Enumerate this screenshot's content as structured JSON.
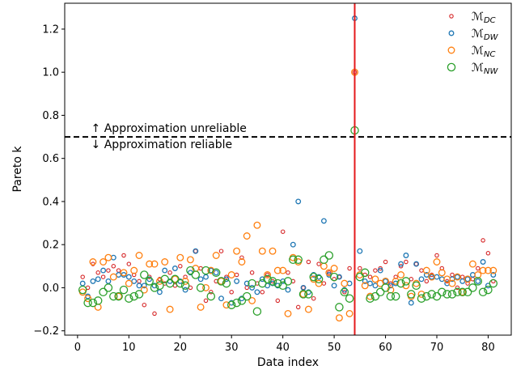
{
  "chart_data": {
    "type": "scatter",
    "xlabel": "Data index",
    "ylabel": "Pareto k",
    "xlim": [
      -2.5,
      84.5
    ],
    "ylim": [
      -0.22,
      1.32
    ],
    "x_ticks": [
      0,
      10,
      20,
      30,
      40,
      50,
      60,
      70,
      80
    ],
    "y_ticks": [
      -0.2,
      0.0,
      0.2,
      0.4,
      0.6,
      0.8,
      1.0,
      1.2
    ],
    "x_tick_labels": [
      "0",
      "10",
      "20",
      "30",
      "40",
      "50",
      "60",
      "70",
      "80"
    ],
    "y_tick_labels": [
      "−0.2",
      "0.0",
      "0.2",
      "0.4",
      "0.6",
      "0.8",
      "1.0",
      "1.2"
    ],
    "grid": false,
    "legend_position": "top-right",
    "threshold_line": {
      "y": 0.7,
      "style": "dashed",
      "color": "#000000"
    },
    "vertical_line": {
      "x": 54,
      "color": "#e41a1c"
    },
    "annotations": {
      "above": "↑ Approximation unreliable",
      "below": "↓ Approximation reliable",
      "x": 2
    },
    "series": [
      {
        "name": "ℳ",
        "name_sub": "DC",
        "color": "#d62728",
        "marker_size": 2.2,
        "x": [
          1,
          2,
          3,
          4,
          5,
          6,
          7,
          8,
          9,
          10,
          11,
          12,
          13,
          14,
          15,
          16,
          17,
          18,
          19,
          20,
          21,
          22,
          23,
          24,
          25,
          26,
          27,
          28,
          29,
          30,
          31,
          32,
          33,
          34,
          35,
          36,
          37,
          38,
          39,
          40,
          41,
          42,
          43,
          44,
          45,
          46,
          47,
          48,
          49,
          50,
          51,
          52,
          53,
          54,
          55,
          56,
          57,
          58,
          59,
          60,
          61,
          62,
          63,
          64,
          65,
          66,
          67,
          68,
          69,
          70,
          71,
          72,
          73,
          74,
          75,
          76,
          77,
          78,
          79,
          80,
          81
        ],
        "y": [
          0.05,
          0.0,
          0.11,
          0.07,
          0.05,
          0.08,
          0.1,
          0.08,
          0.15,
          0.11,
          0.06,
          0.03,
          -0.08,
          0.05,
          -0.12,
          0.04,
          0.02,
          0.07,
          0.01,
          0.1,
          0.05,
          0.0,
          0.17,
          0.09,
          -0.06,
          -0.02,
          0.03,
          0.17,
          0.05,
          -0.02,
          0.06,
          0.14,
          0.0,
          0.07,
          0.02,
          -0.02,
          0.06,
          0.03,
          -0.06,
          0.26,
          0.07,
          0.03,
          -0.09,
          0.0,
          0.12,
          -0.05,
          0.11,
          0.02,
          0.07,
          0.04,
          0.05,
          -0.02,
          0.09,
          1.0,
          0.09,
          0.06,
          0.05,
          0.08,
          0.09,
          0.12,
          0.02,
          0.05,
          0.1,
          0.12,
          0.04,
          0.11,
          0.08,
          0.03,
          0.06,
          0.15,
          0.09,
          0.03,
          0.06,
          0.0,
          0.05,
          0.02,
          0.04,
          0.09,
          0.22,
          0.16,
          0.03
        ]
      },
      {
        "name": "ℳ",
        "name_sub": "DW",
        "color": "#1f77b4",
        "marker_size": 2.8,
        "x": [
          1,
          2,
          3,
          4,
          5,
          6,
          7,
          8,
          9,
          10,
          11,
          12,
          13,
          14,
          15,
          16,
          17,
          18,
          19,
          20,
          21,
          22,
          23,
          24,
          25,
          26,
          27,
          28,
          29,
          30,
          31,
          32,
          33,
          34,
          35,
          36,
          37,
          38,
          39,
          40,
          41,
          42,
          43,
          44,
          45,
          46,
          47,
          48,
          49,
          50,
          51,
          52,
          53,
          54,
          55,
          56,
          57,
          58,
          59,
          60,
          61,
          62,
          63,
          64,
          65,
          66,
          67,
          68,
          69,
          70,
          71,
          72,
          73,
          74,
          75,
          76,
          77,
          78,
          79,
          80,
          81
        ],
        "y": [
          0.02,
          -0.04,
          0.03,
          0.04,
          0.08,
          0.03,
          0.14,
          0.06,
          0.06,
          0.05,
          0.03,
          0.01,
          0.01,
          0.04,
          0.01,
          -0.02,
          0.08,
          0.03,
          0.09,
          0.03,
          -0.01,
          0.07,
          0.17,
          0.04,
          0.05,
          0.08,
          0.07,
          -0.05,
          0.04,
          -0.07,
          0.03,
          -0.05,
          0.02,
          0.0,
          -0.02,
          0.04,
          0.01,
          0.02,
          0.01,
          0.03,
          -0.01,
          0.2,
          0.4,
          0.0,
          -0.02,
          0.06,
          0.05,
          0.31,
          0.06,
          0.01,
          0.05,
          -0.01,
          0.02,
          1.25,
          0.17,
          0.03,
          0.02,
          0.01,
          0.08,
          0.03,
          0.01,
          0.02,
          0.11,
          0.15,
          -0.07,
          0.11,
          0.04,
          0.06,
          0.05,
          0.05,
          0.04,
          0.02,
          0.04,
          0.05,
          0.03,
          0.04,
          0.06,
          0.03,
          0.12,
          0.01,
          0.06
        ]
      },
      {
        "name": "ℳ",
        "name_sub": "NC",
        "color": "#ff7f0e",
        "marker_size": 3.8,
        "x": [
          1,
          2,
          3,
          4,
          5,
          6,
          7,
          8,
          9,
          10,
          11,
          12,
          13,
          14,
          15,
          16,
          17,
          18,
          19,
          20,
          21,
          22,
          23,
          24,
          25,
          26,
          27,
          28,
          29,
          30,
          31,
          32,
          33,
          34,
          35,
          36,
          37,
          38,
          39,
          40,
          41,
          42,
          43,
          44,
          45,
          46,
          47,
          48,
          49,
          50,
          51,
          52,
          53,
          54,
          55,
          56,
          57,
          58,
          59,
          60,
          61,
          62,
          63,
          64,
          65,
          66,
          67,
          68,
          69,
          70,
          71,
          72,
          73,
          74,
          75,
          76,
          77,
          78,
          79,
          80,
          81
        ],
        "y": [
          -0.02,
          -0.05,
          0.12,
          -0.09,
          0.12,
          0.14,
          0.05,
          -0.04,
          0.07,
          0.02,
          0.08,
          0.15,
          -0.01,
          0.11,
          0.11,
          0.03,
          0.12,
          -0.1,
          0.04,
          0.14,
          0.03,
          0.13,
          0.09,
          -0.09,
          0.0,
          0.08,
          0.15,
          0.03,
          -0.08,
          0.06,
          0.17,
          0.12,
          0.24,
          -0.06,
          0.29,
          0.17,
          0.06,
          0.17,
          0.08,
          0.08,
          -0.12,
          0.14,
          0.12,
          -0.03,
          -0.1,
          0.04,
          0.02,
          0.1,
          0.07,
          0.09,
          -0.14,
          0.02,
          -0.12,
          1.0,
          0.06,
          0.01,
          -0.04,
          0.04,
          0.02,
          0.03,
          -0.01,
          0.03,
          0.06,
          0.01,
          -0.04,
          0.02,
          -0.03,
          0.08,
          0.05,
          0.12,
          0.07,
          0.04,
          0.02,
          0.05,
          -0.02,
          0.04,
          0.11,
          0.06,
          0.08,
          0.08,
          0.08
        ]
      },
      {
        "name": "ℳ",
        "name_sub": "NW",
        "color": "#2ca02c",
        "marker_size": 4.6,
        "x": [
          1,
          2,
          3,
          4,
          5,
          6,
          7,
          8,
          9,
          10,
          11,
          12,
          13,
          14,
          15,
          16,
          17,
          18,
          19,
          20,
          21,
          22,
          23,
          24,
          25,
          26,
          27,
          28,
          29,
          30,
          31,
          32,
          33,
          34,
          35,
          36,
          37,
          38,
          39,
          40,
          41,
          42,
          43,
          44,
          45,
          46,
          47,
          48,
          49,
          50,
          51,
          52,
          53,
          54,
          55,
          56,
          57,
          58,
          59,
          60,
          61,
          62,
          63,
          64,
          65,
          66,
          67,
          68,
          69,
          70,
          71,
          72,
          73,
          74,
          75,
          76,
          77,
          78,
          79,
          80,
          81
        ],
        "y": [
          -0.01,
          -0.07,
          -0.07,
          -0.06,
          -0.02,
          0.0,
          -0.04,
          -0.04,
          -0.01,
          -0.05,
          -0.04,
          -0.03,
          0.06,
          0.03,
          0.0,
          0.01,
          0.04,
          0.02,
          0.04,
          0.02,
          0.01,
          0.08,
          0.06,
          0.0,
          0.08,
          -0.04,
          0.07,
          0.03,
          0.02,
          -0.08,
          -0.07,
          -0.06,
          -0.04,
          0.02,
          -0.11,
          0.02,
          0.04,
          0.03,
          0.02,
          0.01,
          0.03,
          0.13,
          0.13,
          -0.03,
          -0.03,
          0.05,
          0.04,
          0.13,
          0.15,
          0.05,
          -0.09,
          -0.02,
          -0.05,
          0.73,
          0.05,
          0.07,
          -0.05,
          -0.04,
          -0.02,
          0.0,
          -0.04,
          -0.04,
          0.02,
          0.03,
          -0.03,
          0.01,
          -0.05,
          -0.04,
          -0.03,
          -0.04,
          -0.02,
          -0.03,
          -0.03,
          -0.02,
          -0.02,
          -0.02,
          0.0,
          0.03,
          -0.02,
          -0.01,
          0.02
        ]
      }
    ]
  }
}
